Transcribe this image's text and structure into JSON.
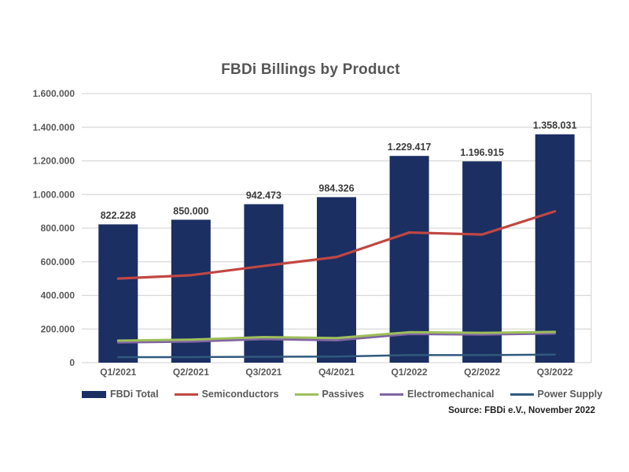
{
  "title": "FBDi Billings by Product",
  "source": "Source: FBDi e.V., November 2022",
  "colors": {
    "bar": "#1b2f63",
    "semiconductors": "#c14743",
    "passives": "#9ebf5a",
    "electromechanical": "#8064a2",
    "power_supply": "#31597d",
    "grid": "#d9d9d9",
    "axis_text": "#595959",
    "bar_label_text": "#3b3b3b"
  },
  "chart_data": {
    "type": "bar",
    "subtype": "combo bar + line",
    "title": "FBDi Billings by Product",
    "categories": [
      "Q1/2021",
      "Q2/2021",
      "Q3/2021",
      "Q4/2021",
      "Q1/2022",
      "Q2/2022",
      "Q3/2022"
    ],
    "series": [
      {
        "name": "FBDi Total",
        "type": "bar",
        "color": "#1b2f63",
        "values": [
          822228,
          850000,
          942473,
          984326,
          1229417,
          1196915,
          1358031
        ],
        "labels": [
          "822.228",
          "850.000",
          "942.473",
          "984.326",
          "1.229.417",
          "1.196.915",
          "1.358.031"
        ]
      },
      {
        "name": "Semiconductors",
        "type": "line",
        "color": "#c14743",
        "values": [
          500000,
          520000,
          575000,
          628000,
          774000,
          762000,
          900000
        ]
      },
      {
        "name": "Passives",
        "type": "line",
        "color": "#9ebf5a",
        "values": [
          131000,
          137000,
          152000,
          146000,
          181000,
          177000,
          183000
        ]
      },
      {
        "name": "Electromechanical",
        "type": "line",
        "color": "#8064a2",
        "values": [
          120000,
          125000,
          140000,
          133000,
          170000,
          167000,
          173000
        ]
      },
      {
        "name": "Power Supply",
        "type": "line",
        "color": "#31597d",
        "values": [
          33000,
          33000,
          35000,
          36000,
          45000,
          45000,
          48000
        ]
      }
    ],
    "y_axis": {
      "min": 0,
      "max": 1600000,
      "step": 200000,
      "tick_labels": [
        "0",
        "200.000",
        "400.000",
        "600.000",
        "800.000",
        "1.000.000",
        "1.200.000",
        "1.400.000",
        "1.600.000"
      ]
    },
    "xlabel": "",
    "ylabel": "",
    "grid": true,
    "legend_position": "bottom"
  }
}
